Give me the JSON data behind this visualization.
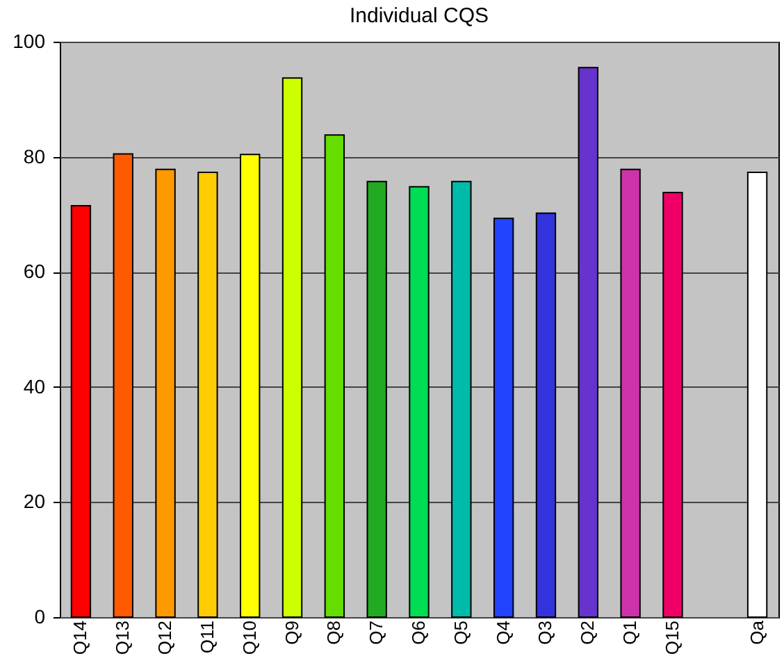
{
  "chart_data": {
    "type": "bar",
    "title": "Individual CQS",
    "categories": [
      "Q14",
      "Q13",
      "Q12",
      "Q11",
      "Q10",
      "Q9",
      "Q8",
      "Q7",
      "Q6",
      "Q5",
      "Q4",
      "Q3",
      "Q2",
      "Q1",
      "Q15",
      null,
      "Qa"
    ],
    "values": [
      71.5,
      80.5,
      77.8,
      77.3,
      80.4,
      93.7,
      83.8,
      75.7,
      74.8,
      75.7,
      69.3,
      70.2,
      95.5,
      77.8,
      73.8,
      null,
      77.3
    ],
    "colors": [
      "#ff0000",
      "#ff5a00",
      "#ff9900",
      "#ffcc00",
      "#ffff00",
      "#ccff00",
      "#66dd00",
      "#22aa22",
      "#00dd55",
      "#00bbaa",
      "#2244ff",
      "#3333dd",
      "#6633cc",
      "#cc33aa",
      "#ee0066",
      "#ffffff",
      "#ffffff"
    ],
    "ylim": [
      0,
      100
    ],
    "yticks": [
      0,
      20,
      40,
      60,
      80,
      100
    ],
    "grid": "y"
  }
}
